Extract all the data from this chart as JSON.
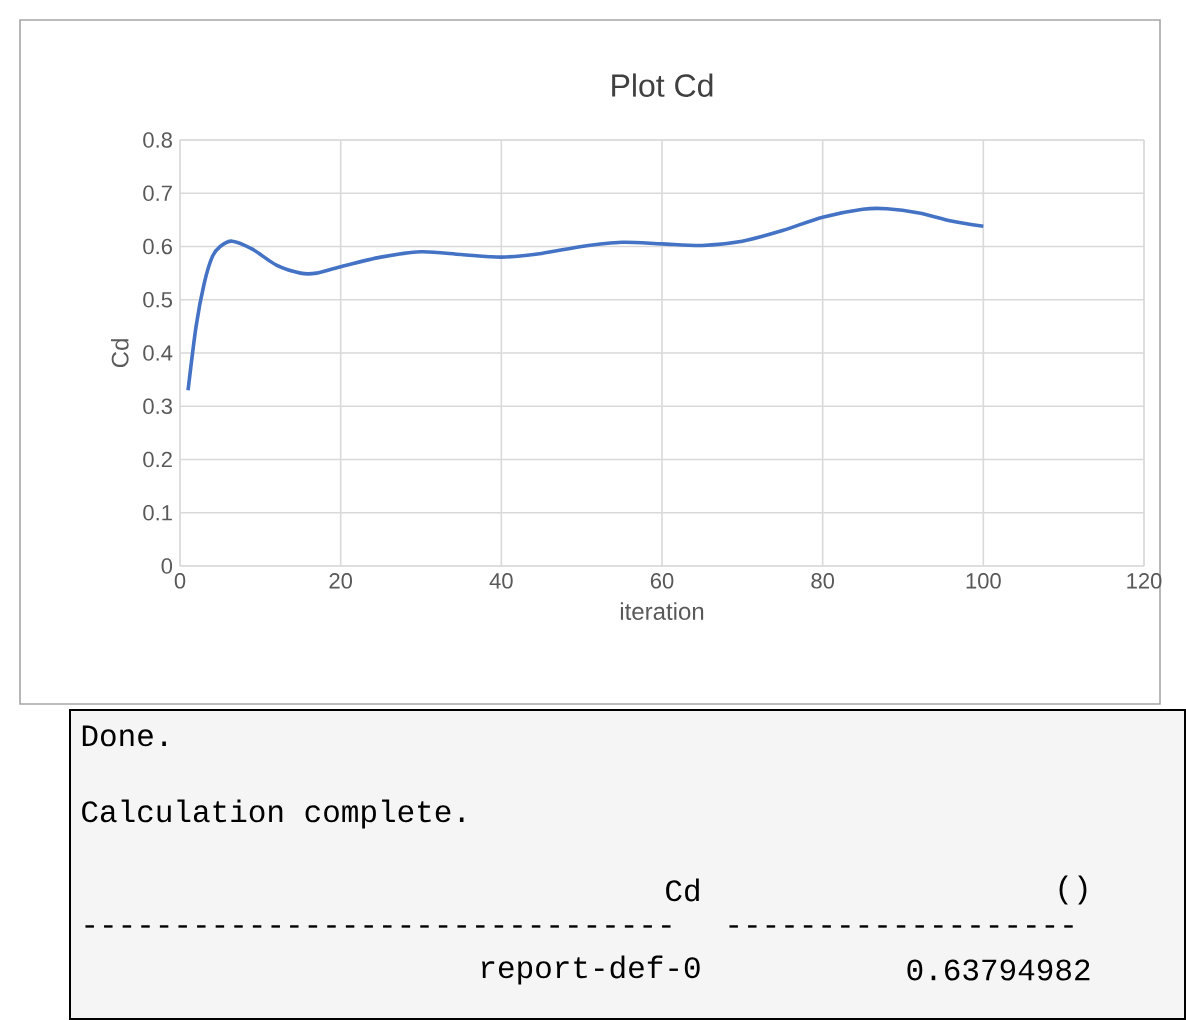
{
  "chart_data": {
    "type": "line",
    "title": "Plot Cd",
    "xlabel": "iteration",
    "ylabel": "Cd",
    "xlim": [
      0,
      120
    ],
    "xticks": [
      0,
      20,
      40,
      60,
      80,
      100,
      120
    ],
    "ylim": [
      0,
      0.8
    ],
    "yticks": [
      0,
      0.1,
      0.2,
      0.3,
      0.4,
      0.5,
      0.6,
      0.7,
      0.8
    ],
    "grid": true,
    "marker": "none",
    "line_style": "solid",
    "series": [
      {
        "color": "#4472c4",
        "x": [
          1,
          2,
          3,
          4,
          5,
          6.5,
          9,
          12,
          15,
          17,
          20,
          25,
          30,
          35,
          40,
          45,
          50,
          55,
          60,
          65,
          70,
          75,
          80,
          85,
          88,
          92,
          96,
          100
        ],
        "values": [
          0.33,
          0.45,
          0.53,
          0.58,
          0.6,
          0.61,
          0.595,
          0.565,
          0.55,
          0.55,
          0.562,
          0.58,
          0.59,
          0.585,
          0.58,
          0.587,
          0.6,
          0.608,
          0.605,
          0.602,
          0.61,
          0.63,
          0.655,
          0.67,
          0.671,
          0.663,
          0.648,
          0.638
        ]
      }
    ],
    "annotations": [
      "Done.",
      "Calculation complete.",
      "Cd",
      "()",
      "--------------------------------",
      "-------------------",
      "report-def-0",
      "0.63794982"
    ]
  }
}
